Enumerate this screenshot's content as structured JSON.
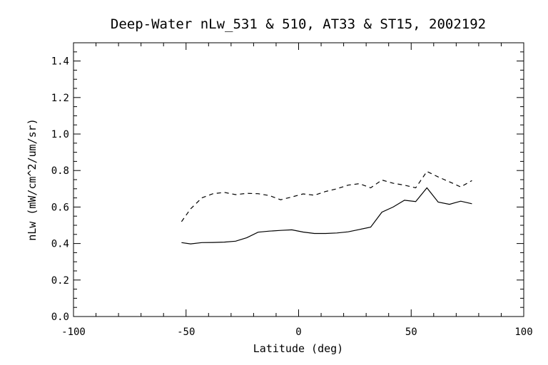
{
  "chart_data": {
    "type": "line",
    "title": "Deep-Water nLw_531 & 510, AT33 & ST15, 2002192",
    "xlabel": "Latitude (deg)",
    "ylabel": "nLw (mW/cm^2/um/sr)",
    "xlim": [
      -100,
      100
    ],
    "ylim": [
      0.0,
      1.5
    ],
    "xticks": [
      "-100",
      "-50",
      "0",
      "50",
      "100"
    ],
    "xtick_values": [
      -100,
      -50,
      0,
      50,
      100
    ],
    "yticks": [
      "0.0",
      "0.2",
      "0.4",
      "0.6",
      "0.8",
      "1.0",
      "1.2",
      "1.4"
    ],
    "ytick_values": [
      0.0,
      0.2,
      0.4,
      0.6,
      0.8,
      1.0,
      1.2,
      1.4
    ],
    "grid": false,
    "series": [
      {
        "style": "solid",
        "x": [
          -52,
          -48,
          -43,
          -38,
          -33,
          -28,
          -23,
          -18,
          -13,
          -8,
          -3,
          2,
          7,
          12,
          17,
          22,
          27,
          32,
          37,
          42,
          47,
          52,
          57,
          62,
          67,
          72,
          77
        ],
        "y": [
          0.405,
          0.398,
          0.405,
          0.406,
          0.408,
          0.413,
          0.432,
          0.462,
          0.468,
          0.472,
          0.475,
          0.463,
          0.455,
          0.455,
          0.458,
          0.464,
          0.477,
          0.49,
          0.572,
          0.6,
          0.637,
          0.63,
          0.705,
          0.627,
          0.615,
          0.632,
          0.618
        ]
      },
      {
        "style": "dashed",
        "x": [
          -52,
          -48,
          -43,
          -38,
          -33,
          -28,
          -23,
          -18,
          -13,
          -8,
          -3,
          2,
          7,
          12,
          17,
          22,
          27,
          32,
          37,
          42,
          47,
          52,
          57,
          62,
          67,
          72,
          77
        ],
        "y": [
          0.52,
          0.59,
          0.65,
          0.673,
          0.68,
          0.668,
          0.675,
          0.673,
          0.663,
          0.64,
          0.655,
          0.672,
          0.665,
          0.685,
          0.7,
          0.72,
          0.728,
          0.705,
          0.748,
          0.73,
          0.72,
          0.705,
          0.795,
          0.765,
          0.738,
          0.71,
          0.745
        ]
      }
    ]
  }
}
